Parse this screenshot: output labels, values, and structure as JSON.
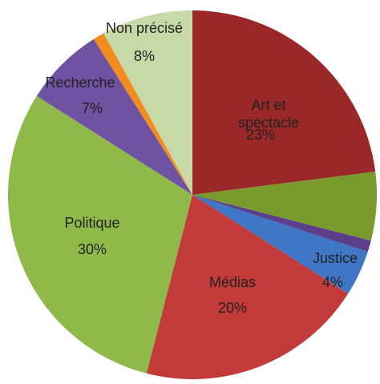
{
  "chart_data": {
    "type": "pie",
    "categories": [
      "Art et spectacle",
      null,
      null,
      "Justice",
      "Médias",
      "Politique",
      "Recherche",
      null,
      "Non précisé"
    ],
    "values": [
      23,
      6,
      1,
      4,
      20,
      30,
      7,
      1,
      8
    ],
    "value_labels": [
      "23%",
      null,
      null,
      "4%",
      "20%",
      "30%",
      "7%",
      null,
      "8%"
    ],
    "colors": [
      "#9a2828",
      "#7a9a2e",
      "#5b3f8a",
      "#3f76c6",
      "#c33a3a",
      "#8fba4a",
      "#7052a3",
      "#f28c1e",
      "#c6d9a6"
    ]
  }
}
